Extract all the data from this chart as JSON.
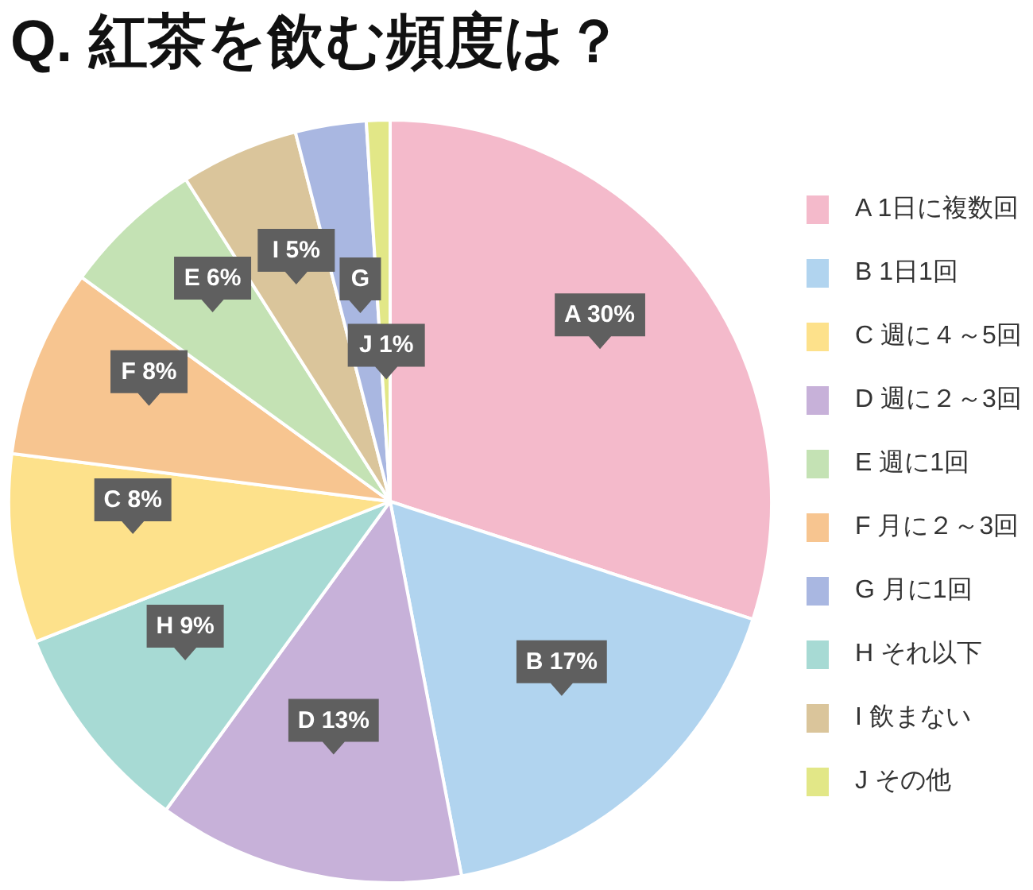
{
  "chart_data": {
    "type": "pie",
    "title": "Q. 紅茶を飲む頻度は？",
    "categories": [
      "A 1日に複数回",
      "B 1日1回",
      "D 週に２～3回",
      "H それ以下",
      "C 週に４～5回",
      "F 月に２～3回",
      "E 週に1回",
      "I 飲まない",
      "G 月に1回",
      "J その他"
    ],
    "values": [
      30,
      17,
      13,
      9,
      8,
      8,
      6,
      5,
      3,
      1
    ],
    "colors": [
      "#f4bacb",
      "#b1d4ef",
      "#c7b1d9",
      "#a7dad4",
      "#fde18b",
      "#f7c590",
      "#c4e2b4",
      "#dac59b",
      "#a9b7e1",
      "#e2e787"
    ],
    "value_labels": [
      "A 30%",
      "B 17%",
      "D 13%",
      "H 9%",
      "C 8%",
      "F 8%",
      "E 6%",
      "I 5%",
      "G",
      "J 1%"
    ],
    "legend": "right"
  }
}
